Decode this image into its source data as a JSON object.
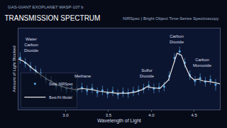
{
  "chart_data": {
    "type": "scatter",
    "title": "TRANSMISSION SPECTRUM",
    "subtitle": "GAS-GIANT EXOPLANET WASP-107 b",
    "note": "NIRSpec | Bright Object Time-Series Spectroscopy",
    "x_label": "Wavelength of Light",
    "y_label": "Amount of Light Blocked",
    "xlim": [
      2.45,
      4.8
    ],
    "xticks": [
      {
        "value": 3,
        "label": "3.0"
      },
      {
        "value": 3.5,
        "label": "3.5"
      },
      {
        "value": 4,
        "label": "4.0"
      },
      {
        "value": 4.5,
        "label": "4.5"
      }
    ],
    "ylim": [
      1.5,
      10
    ],
    "yticks": [],
    "tick_labels": "x",
    "grid": false,
    "legend": "bottom left",
    "series": [
      {
        "name": "Data: NIRSpec",
        "type": "scatter",
        "marker": "circle",
        "color": "#5aaae6",
        "x": [
          2.47,
          2.53,
          2.59,
          2.65,
          2.71,
          2.77,
          2.83,
          2.89,
          2.95,
          3.01,
          3.07,
          3.13,
          3.19,
          3.25,
          3.31,
          3.37,
          3.43,
          3.49,
          3.55,
          3.61,
          3.67,
          3.73,
          3.79,
          3.85,
          3.91,
          3.97,
          4.03,
          4.09,
          4.15,
          4.21,
          4.27,
          4.33,
          4.39,
          4.45,
          4.51,
          4.57,
          4.63,
          4.69,
          4.75
        ],
        "values": [
          6.9,
          6.4,
          6.0,
          5.6,
          5.3,
          4.7,
          4.5,
          4.0,
          3.9,
          3.7,
          3.8,
          3.5,
          3.8,
          3.5,
          3.7,
          3.3,
          3.5,
          3.2,
          3.4,
          3.1,
          3.3,
          3.2,
          3.4,
          3.5,
          3.7,
          4.0,
          3.7,
          3.8,
          3.9,
          5.0,
          6.9,
          7.6,
          6.4,
          5.1,
          4.5,
          4.8,
          4.4,
          4.6,
          4.1
        ],
        "errors": [
          0.6,
          0.5,
          0.5,
          0.5,
          0.5,
          0.5,
          0.5,
          0.5,
          0.5,
          0.5,
          0.5,
          0.5,
          0.5,
          0.5,
          0.5,
          0.5,
          0.5,
          0.5,
          0.5,
          0.5,
          0.5,
          0.5,
          0.5,
          0.5,
          0.5,
          0.5,
          0.5,
          0.5,
          0.5,
          0.5,
          0.5,
          0.5,
          0.5,
          0.5,
          0.5,
          0.5,
          0.5,
          0.5,
          0.6
        ]
      },
      {
        "name": "Best-Fit Model",
        "type": "line",
        "line_style": "solid",
        "color": "#e4e4e4",
        "x": [
          2.45,
          2.5,
          2.55,
          2.6,
          2.7,
          2.8,
          2.9,
          3.0,
          3.1,
          3.2,
          3.3,
          3.4,
          3.5,
          3.6,
          3.7,
          3.8,
          3.9,
          3.95,
          4.0,
          4.1,
          4.2,
          4.25,
          4.3,
          4.35,
          4.4,
          4.45,
          4.5,
          4.55,
          4.6,
          4.7,
          4.8
        ],
        "values": [
          6.8,
          6.6,
          6.3,
          5.9,
          5.2,
          4.6,
          4.1,
          3.8,
          3.6,
          3.7,
          3.6,
          3.4,
          3.3,
          3.2,
          3.2,
          3.3,
          3.6,
          3.9,
          3.8,
          3.7,
          4.6,
          6.0,
          7.4,
          7.2,
          6.0,
          5.0,
          4.6,
          4.7,
          4.5,
          4.4,
          4.2
        ]
      }
    ],
    "annotations": [
      {
        "text": [
          "Water",
          "Carbon",
          "Dioxide"
        ],
        "x": 2.6,
        "y": 8.3
      },
      {
        "text": [
          "Methane"
        ],
        "x": 3.2,
        "y": 5.0
      },
      {
        "text": [
          "Sulfur",
          "Dioxide"
        ],
        "x": 3.95,
        "y": 5.3
      },
      {
        "text": [
          "Carbon",
          "Dioxide"
        ],
        "x": 4.3,
        "y": 8.9
      },
      {
        "text": [
          "Carbon",
          "Monoxide"
        ],
        "x": 4.6,
        "y": 6.4
      }
    ]
  }
}
